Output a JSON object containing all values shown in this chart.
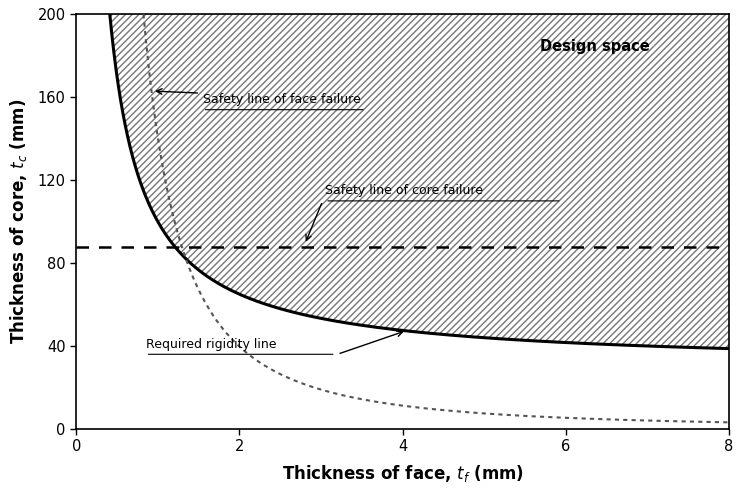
{
  "title": "Design space",
  "xlabel": "Thickness of face, $t_f$ (mm)",
  "ylabel": "Thickness of core, $t_c$ (mm)",
  "xlim": [
    0,
    8
  ],
  "ylim": [
    0,
    200
  ],
  "xticks": [
    0,
    2,
    4,
    6,
    8
  ],
  "yticks": [
    0,
    40,
    80,
    120,
    160,
    200
  ],
  "safety_face_label": "Safety line of face failure",
  "safety_core_label": "Safety line of core failure",
  "rigidity_label": "Required rigidity line",
  "design_space_label": "Design space",
  "core_failure_y": 88,
  "face_A": 55.0,
  "face_n": 0.5,
  "face_C": 22.0,
  "rig_A": 120.0,
  "rig_n": 1.8,
  "hatch_color": "#888888",
  "background_color": "#ffffff"
}
